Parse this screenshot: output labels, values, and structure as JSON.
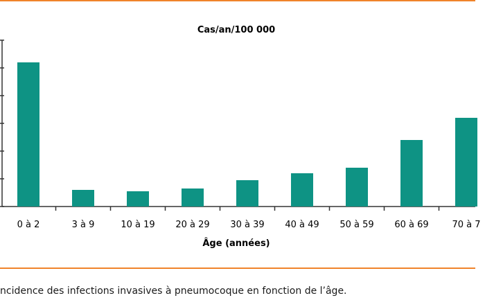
{
  "colors": {
    "accent": "#f0832a",
    "bar": "#0e9384",
    "axis": "#333333"
  },
  "caption": "ncidence des infections invasives à pneumocoque en fonction de l’âge.",
  "chart_data": {
    "type": "bar",
    "title": "Cas/an/100 000",
    "xlabel": "Âge (années)",
    "ylabel": "Cas/an/100 000",
    "categories": [
      "0 à 2",
      "3 à 9",
      "10 à 19",
      "20 à 29",
      "30 à 39",
      "40 à 49",
      "50 à 59",
      "60 à 69",
      "70 à 7"
    ],
    "values": [
      52,
      6,
      5.5,
      6.5,
      9.5,
      12,
      14,
      24,
      32
    ],
    "ylim": [
      0,
      60
    ],
    "grid": false,
    "legend": "none"
  }
}
